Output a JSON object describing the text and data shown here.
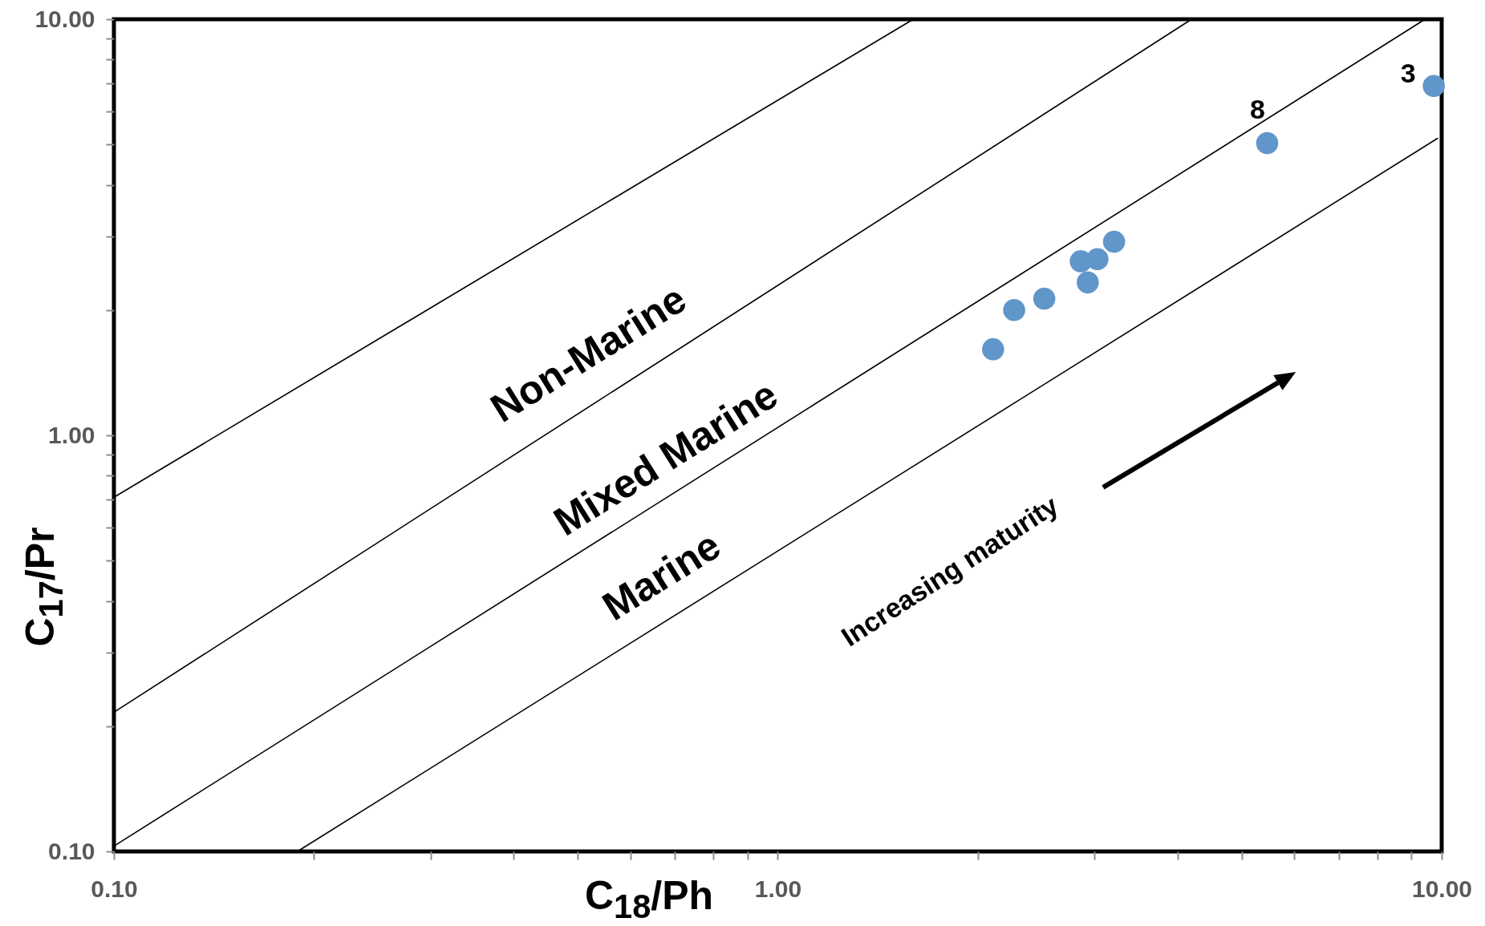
{
  "chart_data": {
    "type": "scatter",
    "xlabel": "C$_{18}$/Ph",
    "ylabel": "C$_{17}$/Pr",
    "log": "xy",
    "xlim": [
      0.1,
      10
    ],
    "ylim": [
      0.1,
      10
    ],
    "xticks": [
      {
        "value": 0.1,
        "label": "0.10"
      },
      {
        "value": 0.2,
        "label": null
      },
      {
        "value": 0.3,
        "label": null
      },
      {
        "value": 0.4,
        "label": null
      },
      {
        "value": 0.5,
        "label": null
      },
      {
        "value": 0.6,
        "label": null
      },
      {
        "value": 0.7,
        "label": null
      },
      {
        "value": 0.8,
        "label": null
      },
      {
        "value": 0.9,
        "label": null
      },
      {
        "value": 1,
        "label": "1.00"
      },
      {
        "value": 2,
        "label": null
      },
      {
        "value": 3,
        "label": null
      },
      {
        "value": 4,
        "label": null
      },
      {
        "value": 5,
        "label": null
      },
      {
        "value": 6,
        "label": null
      },
      {
        "value": 7,
        "label": null
      },
      {
        "value": 8,
        "label": null
      },
      {
        "value": 9,
        "label": null
      },
      {
        "value": 10,
        "label": "10.00"
      }
    ],
    "yticks": [
      {
        "value": 0.1,
        "label": "0.10"
      },
      {
        "value": 0.2,
        "label": null
      },
      {
        "value": 0.3,
        "label": null
      },
      {
        "value": 0.4,
        "label": null
      },
      {
        "value": 0.5,
        "label": null
      },
      {
        "value": 0.6,
        "label": null
      },
      {
        "value": 0.7,
        "label": null
      },
      {
        "value": 0.8,
        "label": null
      },
      {
        "value": 0.9,
        "label": null
      },
      {
        "value": 1,
        "label": "1.00"
      },
      {
        "value": 2,
        "label": null
      },
      {
        "value": 3,
        "label": null
      },
      {
        "value": 4,
        "label": null
      },
      {
        "value": 5,
        "label": null
      },
      {
        "value": 6,
        "label": null
      },
      {
        "value": 7,
        "label": null
      },
      {
        "value": 8,
        "label": null
      },
      {
        "value": 9,
        "label": null
      },
      {
        "value": 10,
        "label": "10.00"
      }
    ],
    "series": [
      {
        "type": "line",
        "color": "#000000",
        "x": [
          0.1,
          1.6
        ],
        "values": [
          0.71,
          10
        ]
      },
      {
        "type": "line",
        "color": "#000000",
        "x": [
          0.1,
          4.2
        ],
        "values": [
          0.216,
          10
        ]
      },
      {
        "type": "line",
        "color": "#000000",
        "x": [
          0.1,
          9.44
        ],
        "values": [
          0.103,
          10
        ]
      },
      {
        "type": "line",
        "color": "#000000",
        "x": [
          0.189,
          9.87
        ],
        "values": [
          0.1,
          5.18
        ]
      },
      {
        "marker": "circle",
        "color": "#6096c9",
        "x": [
          2.11,
          2.27,
          2.52,
          2.86,
          2.91,
          2.93,
          3.03,
          3.21,
          5.46,
          9.73
        ],
        "values": [
          1.61,
          2.0,
          2.13,
          2.62,
          null,
          2.33,
          2.65,
          2.92,
          5.04,
          6.91
        ]
      }
    ],
    "annotations": [
      "Non-Marine",
      "Mixed Marine",
      "Marine",
      "Increasing maturity",
      {
        "text": "8",
        "x": 5.46,
        "y": 5.04
      },
      {
        "text": "3",
        "x": 9.73,
        "y": 6.91
      }
    ]
  }
}
